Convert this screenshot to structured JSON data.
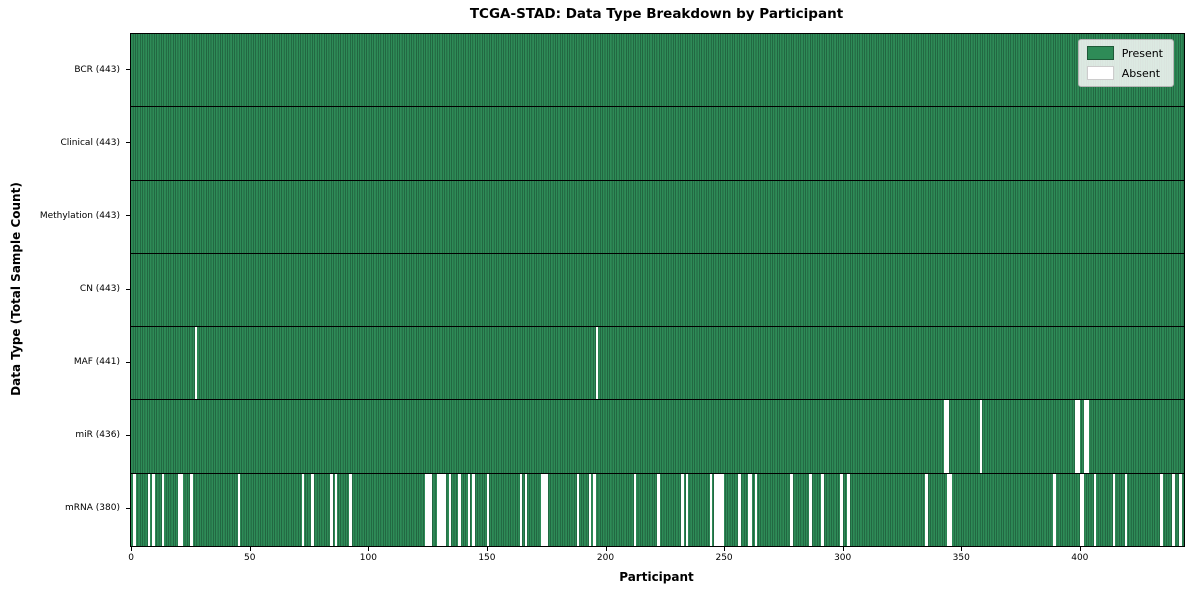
{
  "figure": {
    "title": "TCGA-STAD: Data Type Breakdown by Participant",
    "x_axis_title": "Participant",
    "y_axis_title": "Data Type (Total Sample Count)"
  },
  "legend": {
    "entries": [
      {
        "name": "present",
        "label": "Present",
        "color": "#2e8b57"
      },
      {
        "name": "absent",
        "label": "Absent",
        "color": "#ffffff"
      }
    ]
  },
  "chart_data": {
    "type": "heatmap",
    "title": "TCGA-STAD: Data Type Breakdown by Participant",
    "xlabel": "Participant",
    "ylabel": "Data Type (Total Sample Count)",
    "x_ticks": [
      0,
      50,
      100,
      150,
      200,
      250,
      300,
      350,
      400
    ],
    "x_range": [
      0,
      444
    ],
    "n_participants": 443,
    "grid": false,
    "legend_position": "upper right",
    "colors": {
      "present": "#2e8b57",
      "present_edge": "#15402a",
      "absent": "#ffffff"
    },
    "rows": [
      {
        "name": "BCR",
        "total": 443,
        "label": "BCR (443)",
        "absent": []
      },
      {
        "name": "Clinical",
        "total": 443,
        "label": "Clinical (443)",
        "absent": []
      },
      {
        "name": "Methylation",
        "total": 443,
        "label": "Methylation (443)",
        "absent": []
      },
      {
        "name": "CN",
        "total": 443,
        "label": "CN (443)",
        "absent": []
      },
      {
        "name": "MAF",
        "total": 441,
        "label": "MAF (441)",
        "absent": [
          27,
          196
        ]
      },
      {
        "name": "miR",
        "total": 436,
        "label": "miR (436)",
        "absent": [
          343,
          344,
          358,
          398,
          399,
          402,
          403
        ]
      },
      {
        "name": "mRNA",
        "total": 380,
        "label": "mRNA (380)",
        "absent": [
          1,
          7,
          9,
          13,
          20,
          21,
          25,
          45,
          72,
          76,
          84,
          86,
          92,
          124,
          125,
          126,
          129,
          130,
          131,
          132,
          134,
          138,
          142,
          144,
          150,
          164,
          166,
          173,
          174,
          175,
          188,
          193,
          195,
          212,
          222,
          232,
          234,
          244,
          246,
          247,
          248,
          249,
          256,
          260,
          261,
          263,
          278,
          286,
          291,
          299,
          302,
          335,
          344,
          345,
          389,
          400,
          401,
          406,
          414,
          419,
          434,
          439,
          442
        ]
      }
    ]
  }
}
